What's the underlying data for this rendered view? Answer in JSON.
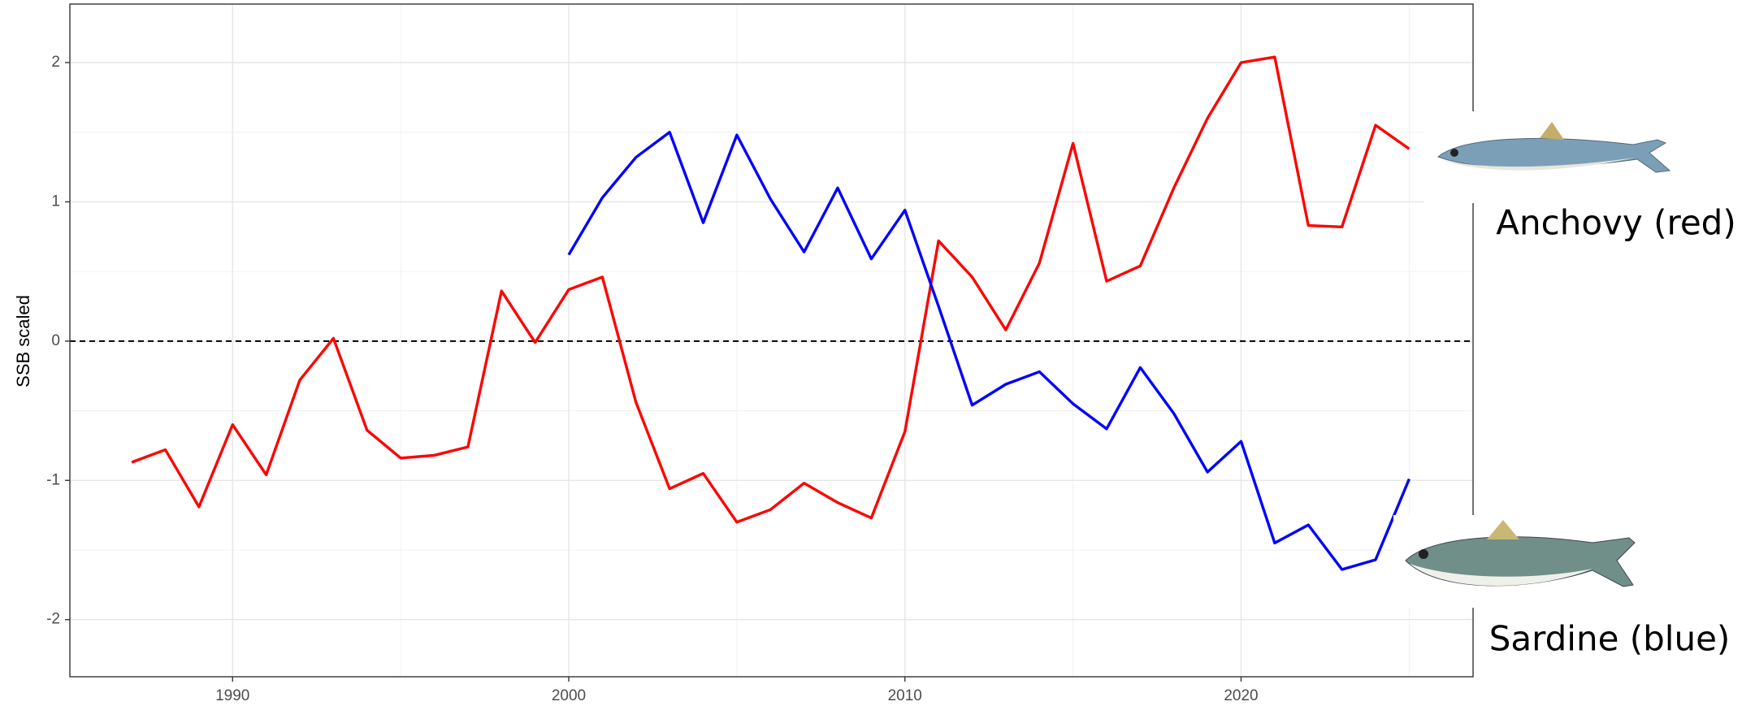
{
  "chart_data": {
    "type": "line",
    "y_label": "SSB scaled",
    "x": [
      1987,
      1988,
      1989,
      1990,
      1991,
      1992,
      1993,
      1994,
      1995,
      1996,
      1997,
      1998,
      1999,
      2000,
      2001,
      2002,
      2003,
      2004,
      2005,
      2006,
      2007,
      2008,
      2009,
      2010,
      2011,
      2012,
      2013,
      2014,
      2015,
      2016,
      2017,
      2018,
      2019,
      2020,
      2021,
      2022,
      2023,
      2024,
      2025
    ],
    "series": [
      {
        "name": "Anchovy (red)",
        "color": "#ff0000",
        "values": [
          -0.87,
          -0.78,
          -1.19,
          -0.6,
          -0.96,
          -0.28,
          0.02,
          -0.64,
          -0.84,
          -0.82,
          -0.76,
          0.36,
          -0.01,
          0.37,
          0.46,
          -0.44,
          -1.06,
          -0.95,
          -1.3,
          -1.21,
          -1.02,
          -1.16,
          -1.27,
          -0.65,
          0.72,
          0.46,
          0.08,
          0.56,
          1.42,
          0.43,
          0.54,
          1.1,
          1.6,
          2.0,
          2.04,
          0.83,
          0.82,
          1.55,
          1.38
        ]
      },
      {
        "name": "Sardine (blue)",
        "color": "#0000ff",
        "values": [
          null,
          null,
          null,
          null,
          null,
          null,
          null,
          null,
          null,
          null,
          null,
          null,
          null,
          0.62,
          1.03,
          1.32,
          1.5,
          0.85,
          1.48,
          1.02,
          0.64,
          1.1,
          0.59,
          0.94,
          0.25,
          -0.46,
          -0.31,
          -0.22,
          -0.45,
          -0.63,
          -0.19,
          -0.52,
          -0.94,
          -0.72,
          -1.45,
          -1.32,
          -1.64,
          -1.57,
          -0.99
        ]
      }
    ],
    "xlim": [
      1985.16,
      2026.9
    ],
    "ylim": [
      -2.41,
      2.42
    ],
    "xticks": [
      1990,
      2000,
      2010,
      2020
    ],
    "yticks": [
      -2,
      -1,
      0,
      1,
      2
    ],
    "reference_line": 0,
    "grid": true
  }
}
